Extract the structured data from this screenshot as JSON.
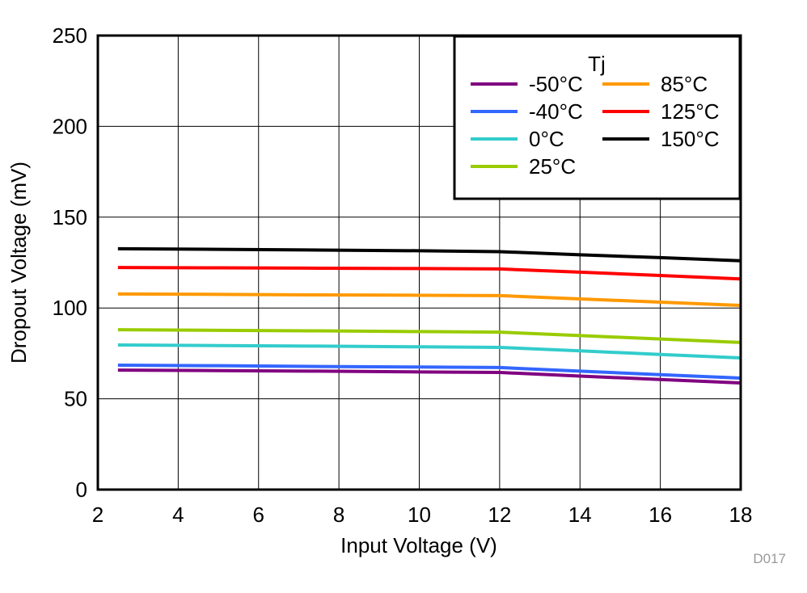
{
  "chart_data": {
    "type": "line",
    "xlabel": "Input Voltage (V)",
    "ylabel": "Dropout Voltage (mV)",
    "xlim": [
      2,
      18
    ],
    "ylim": [
      0,
      250
    ],
    "xticks": [
      2,
      4,
      6,
      8,
      10,
      12,
      14,
      16,
      18
    ],
    "yticks": [
      0,
      50,
      100,
      150,
      200,
      250
    ],
    "grid": true,
    "legend": {
      "title": "Tj",
      "placement": "top-right"
    },
    "footnote": "D017",
    "x": [
      2.5,
      5,
      7.5,
      10,
      12,
      14,
      16,
      18
    ],
    "series": [
      {
        "name": "-50°C",
        "color": "#800080",
        "values": [
          65.8,
          65.5,
          65.2,
          64.8,
          64.5,
          62.5,
          60.6,
          58.7
        ]
      },
      {
        "name": "-40°C",
        "color": "#3366ff",
        "values": [
          68.5,
          68.2,
          67.8,
          67.5,
          67.2,
          65.2,
          63.3,
          61.4
        ]
      },
      {
        "name": "0°C",
        "color": "#33cccc",
        "values": [
          79.6,
          79.3,
          79,
          78.6,
          78.3,
          76.4,
          74.4,
          72.5
        ]
      },
      {
        "name": "25°C",
        "color": "#99cc00",
        "values": [
          88,
          87.7,
          87.4,
          87,
          86.7,
          84.8,
          82.9,
          81
        ]
      },
      {
        "name": "85°C",
        "color": "#ff9900",
        "values": [
          107.7,
          107.5,
          107.2,
          107,
          106.8,
          105,
          103.2,
          101.4
        ]
      },
      {
        "name": "125°C",
        "color": "#ff0000",
        "values": [
          122.3,
          122.1,
          121.9,
          121.7,
          121.5,
          119.7,
          117.9,
          116
        ]
      },
      {
        "name": "150°C",
        "color": "#000000",
        "values": [
          132.6,
          132.3,
          131.9,
          131.5,
          131,
          129.3,
          127.7,
          126
        ]
      }
    ]
  }
}
